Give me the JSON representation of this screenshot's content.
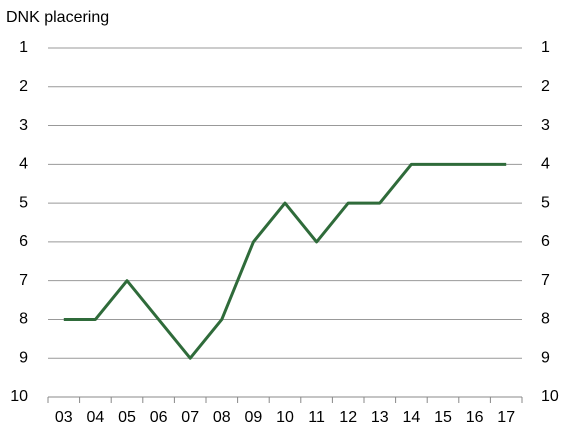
{
  "chart_data": {
    "type": "line",
    "title": "DNK placering",
    "categories": [
      "03",
      "04",
      "05",
      "06",
      "07",
      "08",
      "09",
      "10",
      "11",
      "12",
      "13",
      "14",
      "15",
      "16",
      "17"
    ],
    "series": [
      {
        "name": "DNK",
        "color": "#2f6b3a",
        "values": [
          8,
          8,
          7,
          8,
          9,
          8,
          6,
          5,
          6,
          5,
          5,
          4,
          4,
          4,
          4
        ]
      }
    ],
    "ylim": [
      1,
      10
    ],
    "y_inverted": true,
    "yticks": [
      1,
      2,
      3,
      4,
      5,
      6,
      7,
      8,
      9,
      10
    ],
    "y2lim": [
      1,
      10
    ],
    "y2ticks": [
      1,
      2,
      3,
      4,
      5,
      6,
      7,
      8,
      9,
      10
    ],
    "grid": true,
    "legend": false
  }
}
